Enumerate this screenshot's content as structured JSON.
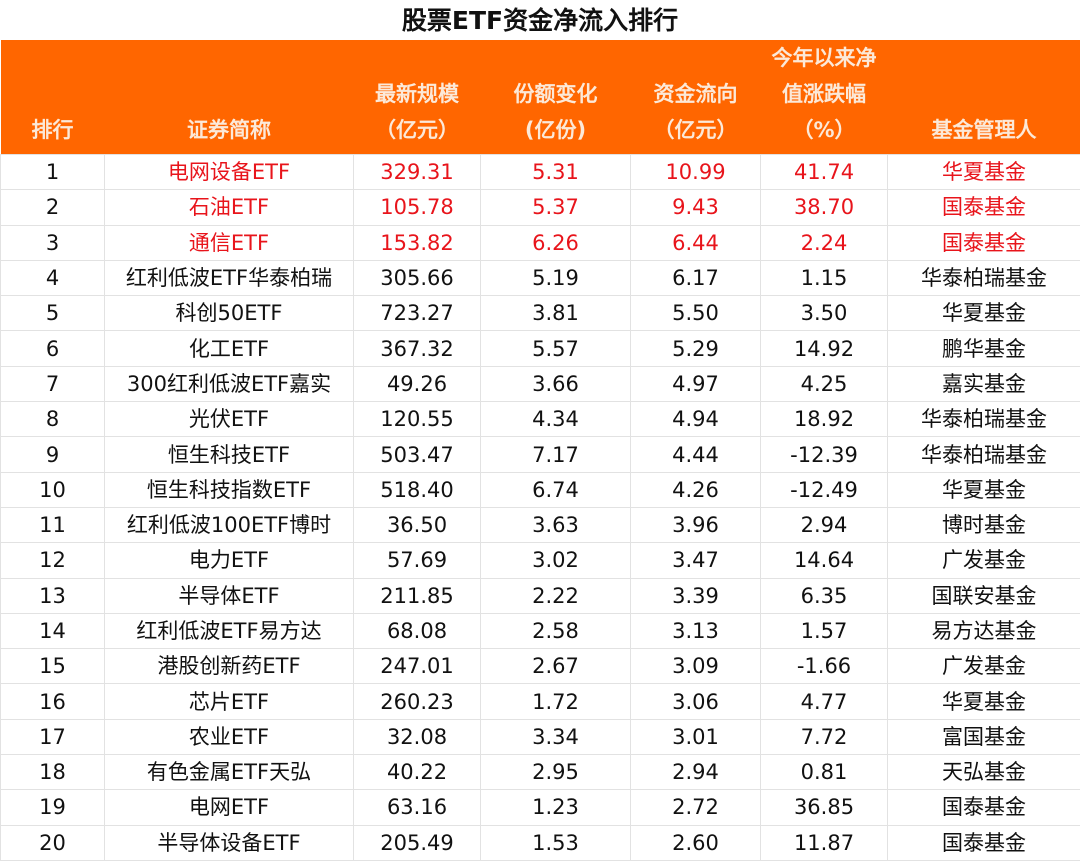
{
  "title": "股票ETF资金净流入排行",
  "colors": {
    "header_bg": "#FF6600",
    "header_text": "#FCE9D8",
    "highlight_text": "#E8141B"
  },
  "headers": [
    [
      "排行"
    ],
    [
      "证券简称"
    ],
    [
      "最新规模",
      "（亿元）"
    ],
    [
      "份额变化",
      "(亿份)"
    ],
    [
      "资金流向",
      "（亿元）"
    ],
    [
      "今年以来净",
      "值涨跌幅",
      "（%）"
    ],
    [
      "基金管理人"
    ]
  ],
  "rows": [
    [
      "1",
      "电网设备ETF",
      "329.31",
      "5.31",
      "10.99",
      "41.74",
      "华夏基金"
    ],
    [
      "2",
      "石油ETF",
      "105.78",
      "5.37",
      "9.43",
      "38.70",
      "国泰基金"
    ],
    [
      "3",
      "通信ETF",
      "153.82",
      "6.26",
      "6.44",
      "2.24",
      "国泰基金"
    ],
    [
      "4",
      "红利低波ETF华泰柏瑞",
      "305.66",
      "5.19",
      "6.17",
      "1.15",
      "华泰柏瑞基金"
    ],
    [
      "5",
      "科创50ETF",
      "723.27",
      "3.81",
      "5.50",
      "3.50",
      "华夏基金"
    ],
    [
      "6",
      "化工ETF",
      "367.32",
      "5.57",
      "5.29",
      "14.92",
      "鹏华基金"
    ],
    [
      "7",
      "300红利低波ETF嘉实",
      "49.26",
      "3.66",
      "4.97",
      "4.25",
      "嘉实基金"
    ],
    [
      "8",
      "光伏ETF",
      "120.55",
      "4.34",
      "4.94",
      "18.92",
      "华泰柏瑞基金"
    ],
    [
      "9",
      "恒生科技ETF",
      "503.47",
      "7.17",
      "4.44",
      "-12.39",
      "华泰柏瑞基金"
    ],
    [
      "10",
      "恒生科技指数ETF",
      "518.40",
      "6.74",
      "4.26",
      "-12.49",
      "华夏基金"
    ],
    [
      "11",
      "红利低波100ETF博时",
      "36.50",
      "3.63",
      "3.96",
      "2.94",
      "博时基金"
    ],
    [
      "12",
      "电力ETF",
      "57.69",
      "3.02",
      "3.47",
      "14.64",
      "广发基金"
    ],
    [
      "13",
      "半导体ETF",
      "211.85",
      "2.22",
      "3.39",
      "6.35",
      "国联安基金"
    ],
    [
      "14",
      "红利低波ETF易方达",
      "68.08",
      "2.58",
      "3.13",
      "1.57",
      "易方达基金"
    ],
    [
      "15",
      "港股创新药ETF",
      "247.01",
      "2.67",
      "3.09",
      "-1.66",
      "广发基金"
    ],
    [
      "16",
      "芯片ETF",
      "260.23",
      "1.72",
      "3.06",
      "4.77",
      "华夏基金"
    ],
    [
      "17",
      "农业ETF",
      "32.08",
      "3.34",
      "3.01",
      "7.72",
      "富国基金"
    ],
    [
      "18",
      "有色金属ETF天弘",
      "40.22",
      "2.95",
      "2.94",
      "0.81",
      "天弘基金"
    ],
    [
      "19",
      "电网ETF",
      "63.16",
      "1.23",
      "2.72",
      "36.85",
      "国泰基金"
    ],
    [
      "20",
      "半导体设备ETF",
      "205.49",
      "1.53",
      "2.60",
      "11.87",
      "国泰基金"
    ]
  ],
  "highlighted_rows": [
    0,
    1,
    2
  ]
}
